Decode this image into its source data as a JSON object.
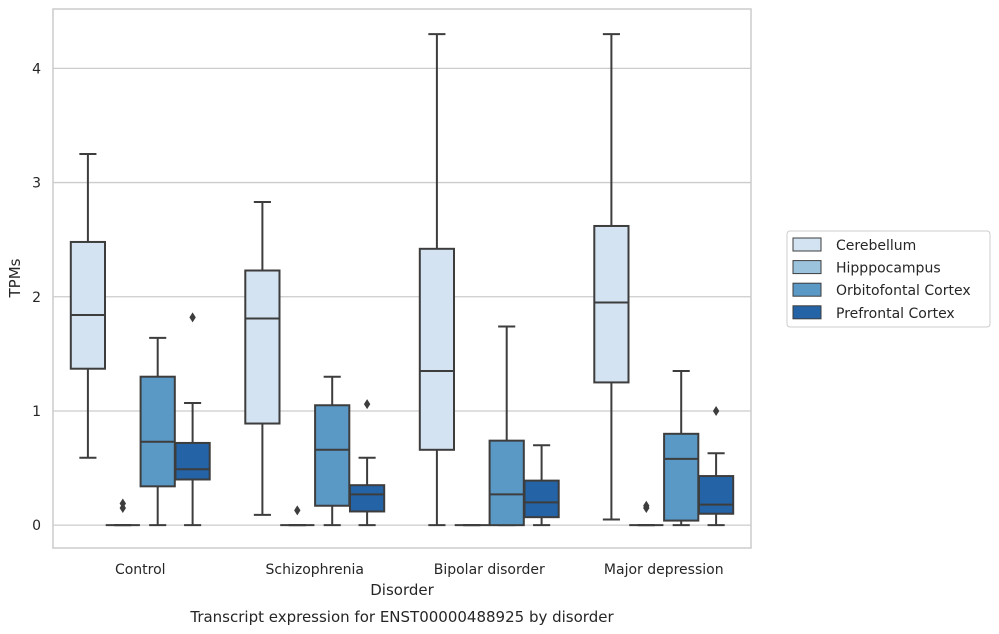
{
  "chart_data": {
    "type": "box",
    "caption": "Transcript expression for ENST00000488925 by disorder",
    "xlabel": "Disorder",
    "ylabel": "TPMs",
    "ylim": [
      -0.2,
      4.52
    ],
    "yticks": [
      0,
      1,
      2,
      3,
      4
    ],
    "grid": "horizontal",
    "legend_placement": "right",
    "categories": [
      "Control",
      "Schizophrenia",
      "Bipolar disorder",
      "Major depression"
    ],
    "series": [
      {
        "name": "Cerebellum",
        "color": "#d4e3f1",
        "boxes": [
          {
            "whisker_low": 0.59,
            "q1": 1.37,
            "median": 1.84,
            "q3": 2.48,
            "whisker_high": 3.25,
            "outliers": []
          },
          {
            "whisker_low": 0.09,
            "q1": 0.89,
            "median": 1.81,
            "q3": 2.23,
            "whisker_high": 2.83,
            "outliers": []
          },
          {
            "whisker_low": 0.0,
            "q1": 0.66,
            "median": 1.35,
            "q3": 2.42,
            "whisker_high": 4.3,
            "outliers": []
          },
          {
            "whisker_low": 0.05,
            "q1": 1.25,
            "median": 1.95,
            "q3": 2.62,
            "whisker_high": 4.3,
            "outliers": []
          }
        ]
      },
      {
        "name": "Hipppocampus",
        "color": "#9cc3de",
        "boxes": [
          {
            "whisker_low": 0.0,
            "q1": 0.0,
            "median": 0.0,
            "q3": 0.0,
            "whisker_high": 0.0,
            "outliers": [
              0.15,
              0.19
            ]
          },
          {
            "whisker_low": 0.0,
            "q1": 0.0,
            "median": 0.0,
            "q3": 0.0,
            "whisker_high": 0.0,
            "outliers": [
              0.13
            ]
          },
          {
            "whisker_low": 0.0,
            "q1": 0.0,
            "median": 0.0,
            "q3": 0.0,
            "whisker_high": 0.0,
            "outliers": []
          },
          {
            "whisker_low": 0.0,
            "q1": 0.0,
            "median": 0.0,
            "q3": 0.0,
            "whisker_high": 0.0,
            "outliers": [
              0.15,
              0.17
            ]
          }
        ]
      },
      {
        "name": "Orbitofontal Cortex",
        "color": "#5a98c6",
        "boxes": [
          {
            "whisker_low": 0.0,
            "q1": 0.34,
            "median": 0.73,
            "q3": 1.3,
            "whisker_high": 1.64,
            "outliers": []
          },
          {
            "whisker_low": 0.0,
            "q1": 0.17,
            "median": 0.66,
            "q3": 1.05,
            "whisker_high": 1.3,
            "outliers": []
          },
          {
            "whisker_low": 0.0,
            "q1": 0.0,
            "median": 0.27,
            "q3": 0.74,
            "whisker_high": 1.74,
            "outliers": []
          },
          {
            "whisker_low": 0.0,
            "q1": 0.04,
            "median": 0.58,
            "q3": 0.8,
            "whisker_high": 1.35,
            "outliers": []
          }
        ]
      },
      {
        "name": "Prefrontal Cortex",
        "color": "#2463a6",
        "boxes": [
          {
            "whisker_low": 0.0,
            "q1": 0.4,
            "median": 0.49,
            "q3": 0.72,
            "whisker_high": 1.07,
            "outliers": [
              1.82
            ]
          },
          {
            "whisker_low": 0.0,
            "q1": 0.12,
            "median": 0.27,
            "q3": 0.35,
            "whisker_high": 0.59,
            "outliers": [
              1.06
            ]
          },
          {
            "whisker_low": 0.0,
            "q1": 0.07,
            "median": 0.2,
            "q3": 0.39,
            "whisker_high": 0.7,
            "outliers": []
          },
          {
            "whisker_low": 0.0,
            "q1": 0.1,
            "median": 0.18,
            "q3": 0.43,
            "whisker_high": 0.63,
            "outliers": [
              1.0
            ]
          }
        ]
      }
    ]
  }
}
